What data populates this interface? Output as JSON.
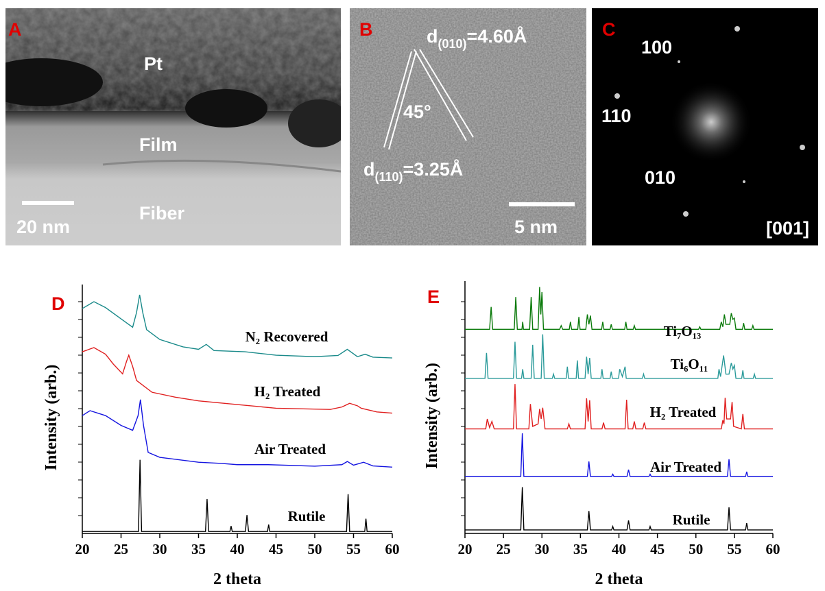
{
  "panels": [
    {
      "label": "A",
      "texts": [
        "Pt",
        "Film",
        "Fiber"
      ],
      "scale_bar": "20 nm"
    },
    {
      "label": "B",
      "spacings": [
        {
          "d": "d",
          "index": "(010)",
          "value": "=4.60Å"
        },
        {
          "d": "d",
          "index": "(110)",
          "value": "=3.25Å"
        }
      ],
      "angle": "45°",
      "scale_bar": "5 nm"
    },
    {
      "label": "C",
      "spots": [
        "100",
        "110",
        "010"
      ],
      "zone_axis": "[001]"
    }
  ],
  "chart_data": [
    {
      "type": "line",
      "panel_label": "D",
      "xlabel": "2 theta",
      "ylabel": "Intensity (arb.)",
      "xlim": [
        20,
        60
      ],
      "xticks": [
        20,
        25,
        30,
        35,
        40,
        45,
        50,
        55,
        60
      ],
      "ylim": [
        0,
        100
      ],
      "series": [
        {
          "name": "Rutile",
          "color": "#000000",
          "x": [
            20,
            27.25,
            27.45,
            27.65,
            35.9,
            36.1,
            36.3,
            39.05,
            39.2,
            39.35,
            41.05,
            41.25,
            41.45,
            43.9,
            44.05,
            44.2,
            54.1,
            54.3,
            54.5,
            56.45,
            56.6,
            56.75,
            60
          ],
          "values": [
            0.8,
            0.8,
            30,
            0.8,
            0.8,
            14,
            0.8,
            0.8,
            3,
            0.8,
            0.8,
            7.5,
            0.8,
            0.8,
            3.6,
            0.8,
            0.8,
            16,
            0.8,
            0.8,
            6,
            0.8,
            0.8
          ]
        },
        {
          "name": "Air Treated",
          "color": "#1414e0",
          "x": [
            20,
            21,
            23,
            25,
            26.5,
            27.2,
            27.5,
            27.9,
            28.5,
            30,
            35,
            38,
            40,
            44,
            50,
            53.5,
            54.2,
            55,
            56.3,
            57.5,
            60
          ],
          "values": [
            48,
            50,
            48,
            44,
            42,
            48,
            54.5,
            44,
            33,
            31,
            29,
            28.5,
            28,
            28,
            27.4,
            28,
            29.3,
            27.8,
            29,
            27.5,
            27
          ]
        },
        {
          "name": "H₂ Treated",
          "color": "#e02020",
          "x": [
            20,
            21.5,
            23,
            24,
            25.2,
            25.7,
            26,
            26.5,
            27,
            29,
            32,
            35,
            40,
            45,
            52,
            53.5,
            54.5,
            55.5,
            56,
            58,
            60
          ],
          "values": [
            74,
            75.7,
            73,
            69,
            65,
            70,
            72.6,
            68,
            62.3,
            57.5,
            55.5,
            54,
            52.5,
            51,
            50.5,
            51.5,
            53,
            52,
            51,
            49.5,
            49
          ]
        },
        {
          "name": "N₂ Recovered",
          "color": "#1a8a8a",
          "x": [
            20,
            21.5,
            23,
            25,
            26.5,
            27,
            27.4,
            27.8,
            28.3,
            30,
            33,
            35,
            36,
            37,
            41,
            45,
            50,
            53,
            54.2,
            55.5,
            56.5,
            57.5,
            60
          ],
          "values": [
            91.6,
            94.4,
            92,
            87.4,
            84,
            90,
            97.2,
            90,
            83,
            79,
            76,
            75,
            77,
            74.5,
            74,
            72.6,
            72,
            72.5,
            75,
            72,
            73,
            71.8,
            71.5
          ]
        }
      ]
    },
    {
      "type": "line",
      "panel_label": "E",
      "xlabel": "2 theta",
      "ylabel": "Intensity (arb.)",
      "xlim": [
        20,
        60
      ],
      "xticks": [
        20,
        25,
        30,
        35,
        40,
        45,
        50,
        55,
        60
      ],
      "ylim": [
        0,
        100
      ],
      "series": [
        {
          "name": "Rutile",
          "color": "#000000",
          "x": [
            20,
            27.25,
            27.45,
            27.65,
            35.9,
            36.1,
            36.3,
            39.05,
            39.2,
            39.35,
            41.05,
            41.25,
            41.45,
            43.9,
            44.05,
            44.2,
            54.1,
            54.3,
            54.5,
            56.45,
            56.6,
            56.75,
            60
          ],
          "values": [
            1.4,
            1.4,
            18.6,
            1.4,
            1.4,
            9,
            1.4,
            1.4,
            2.8,
            1.4,
            1.4,
            5.2,
            1.4,
            1.4,
            2.8,
            1.4,
            1.4,
            10.5,
            1.4,
            1.4,
            4.1,
            1.4,
            1.4
          ]
        },
        {
          "name": "Air Treated",
          "color": "#1414e0",
          "x": [
            20,
            27.25,
            27.45,
            27.65,
            35.9,
            36.1,
            36.3,
            39.05,
            39.2,
            39.35,
            41.05,
            41.25,
            41.45,
            43.9,
            44.05,
            44.2,
            54.1,
            54.3,
            54.5,
            56.45,
            56.6,
            56.75,
            60
          ],
          "values": [
            22.9,
            22.9,
            40.2,
            22.9,
            22.9,
            28.9,
            22.9,
            22.9,
            23.8,
            22.9,
            22.9,
            25.6,
            22.9,
            22.9,
            23.8,
            22.9,
            22.9,
            29.8,
            22.9,
            22.9,
            24.8,
            22.9,
            22.9
          ]
        },
        {
          "name": "H₂ Treated",
          "color": "#e02020",
          "x": [
            20,
            22.7,
            22.9,
            23.2,
            23.5,
            23.8,
            26.3,
            26.5,
            26.7,
            28.3,
            28.5,
            28.8,
            29.5,
            29.7,
            29.9,
            30.1,
            30.4,
            33.3,
            33.5,
            33.7,
            35.6,
            35.8,
            36,
            36.2,
            36.4,
            37.8,
            38,
            38.2,
            40.8,
            41,
            41.2,
            41.8,
            42,
            42.2,
            43.1,
            43.3,
            43.5,
            53.3,
            53.5,
            53.65,
            53.8,
            54,
            54.5,
            54.7,
            54.9,
            55.9,
            56.1,
            56.3,
            60
          ],
          "values": [
            42,
            42,
            46,
            42.5,
            45,
            42,
            42,
            60,
            42,
            42,
            52,
            43,
            44,
            50,
            46,
            50.5,
            42,
            42,
            44,
            42,
            42,
            54.3,
            45,
            53.5,
            42,
            42,
            44.5,
            42,
            42,
            53.7,
            42,
            42,
            45,
            42,
            42,
            44.5,
            42,
            42,
            45.5,
            44,
            54.5,
            46,
            46,
            52.8,
            43,
            42,
            48,
            42,
            42
          ]
        },
        {
          "name": "Ti₆O₁₁",
          "color": "#2a9a9a",
          "x": [
            20,
            22.6,
            22.8,
            23,
            26.3,
            26.5,
            26.7,
            27.35,
            27.5,
            27.65,
            28.6,
            28.8,
            29,
            29.9,
            30.1,
            30.3,
            31.35,
            31.5,
            31.65,
            33.15,
            33.3,
            33.45,
            34.45,
            34.6,
            34.75,
            35.6,
            35.8,
            36,
            36.2,
            36.4,
            37.65,
            37.8,
            37.95,
            38.85,
            39,
            39.15,
            39.95,
            40.1,
            40.45,
            40.8,
            40.95,
            43.05,
            43.2,
            43.35,
            52.85,
            53,
            53.2,
            53.6,
            53.9,
            54.3,
            54.6,
            54.8,
            55,
            55.2,
            55.95,
            56.1,
            56.25,
            57.45,
            57.6,
            57.75,
            60
          ],
          "values": [
            62.3,
            62.3,
            72.5,
            62.3,
            62.3,
            77,
            62.3,
            62.3,
            66,
            62.3,
            62.3,
            75.8,
            62.3,
            62.3,
            80,
            62.3,
            62.3,
            64,
            62.3,
            62.3,
            67,
            62.3,
            62.3,
            69.5,
            62.3,
            62.3,
            71,
            64,
            70.5,
            62.3,
            62.3,
            66,
            62.3,
            62.3,
            65,
            62.3,
            62.3,
            66,
            63,
            67,
            62.3,
            62.3,
            64,
            62.3,
            62.3,
            66,
            63,
            71.5,
            64,
            64,
            68.5,
            66,
            67.5,
            62.3,
            62.3,
            65.5,
            62.3,
            62.3,
            64,
            62.3,
            62.3
          ]
        },
        {
          "name": "Ti₇O₁₃",
          "color": "#0a7a0a",
          "x": [
            20,
            23.2,
            23.4,
            23.6,
            26.4,
            26.6,
            26.8,
            27.4,
            27.5,
            27.6,
            28.4,
            28.6,
            28.8,
            29.5,
            29.7,
            29.85,
            30,
            30.2,
            32.3,
            32.5,
            32.7,
            33.55,
            33.7,
            33.85,
            34.65,
            34.8,
            34.95,
            35.7,
            35.9,
            36.1,
            36.3,
            36.5,
            37.75,
            37.9,
            38.05,
            38.85,
            39,
            39.15,
            40.75,
            40.9,
            41.05,
            41.85,
            42,
            42.15,
            50.35,
            50.5,
            50.65,
            53.1,
            53.3,
            53.5,
            53.7,
            53.9,
            54.4,
            54.6,
            54.8,
            55,
            55.2,
            56.05,
            56.2,
            56.35,
            57.25,
            57.4,
            57.55,
            60
          ],
          "values": [
            82,
            82,
            91,
            82,
            82,
            95,
            82,
            82,
            85,
            82,
            82,
            95,
            82,
            82,
            99,
            88,
            97,
            82,
            82,
            83.5,
            82,
            82,
            85,
            82,
            82,
            87,
            82,
            82,
            88,
            84,
            87.5,
            82,
            82,
            85,
            82,
            82,
            84,
            82,
            82,
            85,
            82,
            82,
            83.5,
            82,
            82,
            83,
            82,
            82,
            85,
            83,
            88,
            84,
            84,
            88.5,
            86,
            86.5,
            82,
            82,
            84.5,
            82,
            82,
            83.5,
            82,
            82
          ]
        }
      ]
    }
  ]
}
